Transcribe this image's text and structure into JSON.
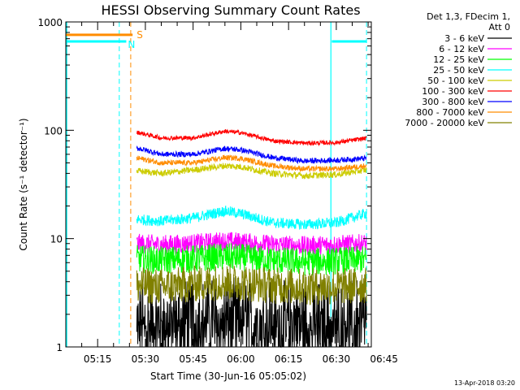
{
  "chart_data": {
    "type": "line",
    "title": "HESSI Observing Summary Count Rates",
    "xlabel": "Start Time (30-Jun-16 05:05:02)",
    "ylabel": "Count Rate (s⁻¹ detector⁻¹)",
    "yscale": "log",
    "ylim": [
      1,
      1000
    ],
    "y_ticks": [
      {
        "value": 1,
        "label": "1"
      },
      {
        "value": 10,
        "label": "10"
      },
      {
        "value": 100,
        "label": "100"
      },
      {
        "value": 1000,
        "label": "1000"
      }
    ],
    "xlim_minutes": [
      5.0,
      101.0
    ],
    "x_ticks": [
      {
        "minute": 15,
        "label": "05:15"
      },
      {
        "minute": 30,
        "label": "05:30"
      },
      {
        "minute": 45,
        "label": "05:45"
      },
      {
        "minute": 60,
        "label": "06:00"
      },
      {
        "minute": 75,
        "label": "06:15"
      },
      {
        "minute": 90,
        "label": "06:30"
      },
      {
        "minute": 105,
        "label": "06:45"
      }
    ],
    "legend_header": [
      "Det 1,3, FDecim 1,",
      "Att 0"
    ],
    "legend_position": "right, outside plot",
    "data_start_minute": 27.3,
    "data_end_minute": 99.5,
    "series": [
      {
        "name": "3 - 6 keV",
        "color": "#000000",
        "points": [
          [
            28,
            1.8
          ],
          [
            35,
            1.8
          ],
          [
            45,
            1.9
          ],
          [
            55,
            2.0
          ],
          [
            60,
            2.0
          ],
          [
            70,
            1.9
          ],
          [
            80,
            1.8
          ],
          [
            90,
            1.8
          ],
          [
            99,
            1.9
          ]
        ]
      },
      {
        "name": "6 - 12 keV",
        "color": "#ff00ff",
        "points": [
          [
            28,
            9
          ],
          [
            35,
            8.8
          ],
          [
            45,
            9
          ],
          [
            55,
            9.5
          ],
          [
            60,
            9.3
          ],
          [
            70,
            8.8
          ],
          [
            80,
            8.6
          ],
          [
            90,
            8.8
          ],
          [
            99,
            9
          ]
        ]
      },
      {
        "name": "12 - 25 keV",
        "color": "#00ff00",
        "points": [
          [
            28,
            6.5
          ],
          [
            35,
            6.3
          ],
          [
            45,
            6.5
          ],
          [
            55,
            6.8
          ],
          [
            60,
            6.7
          ],
          [
            70,
            6.3
          ],
          [
            80,
            6.1
          ],
          [
            90,
            6.2
          ],
          [
            99,
            6.4
          ]
        ]
      },
      {
        "name": "25 - 50 keV",
        "color": "#00ffff",
        "points": [
          [
            28,
            15
          ],
          [
            35,
            14.5
          ],
          [
            45,
            15.5
          ],
          [
            55,
            18
          ],
          [
            60,
            17
          ],
          [
            70,
            14
          ],
          [
            80,
            13.5
          ],
          [
            90,
            14
          ],
          [
            99,
            17
          ]
        ]
      },
      {
        "name": "50 - 100 keV",
        "color": "#cccc00",
        "points": [
          [
            28,
            42
          ],
          [
            35,
            40
          ],
          [
            45,
            43
          ],
          [
            55,
            47
          ],
          [
            60,
            46
          ],
          [
            70,
            40
          ],
          [
            80,
            38
          ],
          [
            90,
            39
          ],
          [
            99,
            43
          ]
        ]
      },
      {
        "name": "100 - 300 keV",
        "color": "#ff0000",
        "points": [
          [
            28,
            95
          ],
          [
            35,
            85
          ],
          [
            45,
            85
          ],
          [
            55,
            98
          ],
          [
            60,
            95
          ],
          [
            70,
            80
          ],
          [
            80,
            76
          ],
          [
            90,
            77
          ],
          [
            99,
            84
          ]
        ]
      },
      {
        "name": "300 - 800 keV",
        "color": "#0000ff",
        "points": [
          [
            28,
            68
          ],
          [
            35,
            60
          ],
          [
            45,
            60
          ],
          [
            55,
            68
          ],
          [
            60,
            66
          ],
          [
            70,
            56
          ],
          [
            80,
            52
          ],
          [
            90,
            53
          ],
          [
            99,
            55
          ]
        ]
      },
      {
        "name": "800 - 7000 keV",
        "color": "#ff8c00",
        "points": [
          [
            28,
            55
          ],
          [
            35,
            50
          ],
          [
            45,
            50
          ],
          [
            55,
            56
          ],
          [
            60,
            55
          ],
          [
            70,
            47
          ],
          [
            80,
            44
          ],
          [
            90,
            44
          ],
          [
            99,
            47
          ]
        ]
      },
      {
        "name": "7000 - 20000 keV",
        "color": "#808000",
        "points": [
          [
            28,
            3.7
          ],
          [
            35,
            3.6
          ],
          [
            45,
            3.8
          ],
          [
            55,
            4.0
          ],
          [
            60,
            3.9
          ],
          [
            70,
            3.7
          ],
          [
            80,
            3.6
          ],
          [
            90,
            3.6
          ],
          [
            99,
            3.7
          ]
        ]
      }
    ],
    "annotations": [
      {
        "label": "S",
        "color": "#ff8c00",
        "minute": 26.5,
        "value": 760
      },
      {
        "label": "N",
        "color": "#00ffff",
        "minute": 24.0,
        "value": 660
      }
    ]
  },
  "footer": {
    "timestamp": "13-Apr-2018 03:20"
  }
}
